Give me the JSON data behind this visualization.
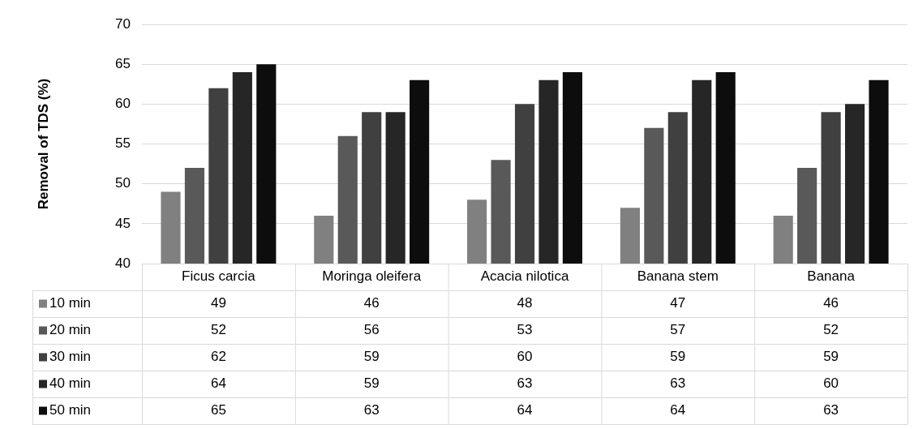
{
  "chart_data": {
    "type": "bar",
    "ylabel": "Removal of TDS (%)",
    "categories": [
      "Ficus carcia",
      "Moringa oleifera",
      "Acacia nilotica",
      "Banana stem",
      "Banana"
    ],
    "series": [
      {
        "name": "10 min",
        "color": "#808080",
        "values": [
          49,
          46,
          48,
          47,
          46
        ]
      },
      {
        "name": "20 min",
        "color": "#595959",
        "values": [
          52,
          56,
          53,
          57,
          52
        ]
      },
      {
        "name": "30 min",
        "color": "#404040",
        "values": [
          62,
          59,
          60,
          59,
          59
        ]
      },
      {
        "name": "40 min",
        "color": "#262626",
        "values": [
          64,
          59,
          63,
          63,
          60
        ]
      },
      {
        "name": "50 min",
        "color": "#0d0d0d",
        "values": [
          65,
          63,
          64,
          64,
          63
        ]
      }
    ],
    "ylim": [
      40,
      70
    ],
    "yticks": [
      40,
      45,
      50,
      55,
      60,
      65,
      70
    ],
    "grid": "y",
    "legend": "bottom",
    "data_labels": true
  }
}
